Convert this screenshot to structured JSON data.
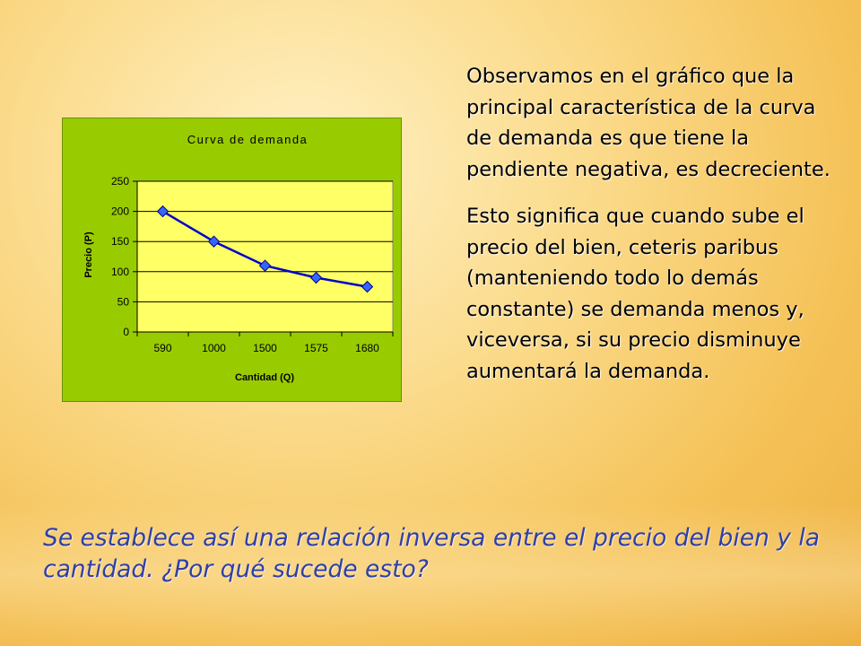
{
  "paragraphs": [
    "Observamos en el gráfico que la principal característica de la curva de demanda es que tiene la pendiente negativa, es decreciente.",
    "Esto significa que cuando sube el precio del bien, ceteris paribus (manteniendo todo lo demás constante) se demanda menos y, viceversa, si su precio disminuye aumentará la demanda."
  ],
  "conclusion": "Se establece así una relación inversa entre el precio del bien y la cantidad. ¿Por qué sucede esto?",
  "colors": {
    "chart_background": "#99cc00",
    "plot_area": "#ffff66",
    "series_line": "#0000cc",
    "marker_fill": "#3366ff",
    "conclusion_text": "#2f3fa8"
  },
  "chart_data": {
    "type": "line",
    "title": "Curva de demanda",
    "xlabel": "Cantidad (Q)",
    "ylabel": "Precio (P)",
    "categories": [
      "590",
      "1000",
      "1500",
      "1575",
      "1680"
    ],
    "values": [
      200,
      150,
      110,
      90,
      75
    ],
    "ylim": [
      0,
      250
    ],
    "yticks": [
      0,
      50,
      100,
      150,
      200,
      250
    ],
    "grid": true,
    "marker": "diamond"
  }
}
